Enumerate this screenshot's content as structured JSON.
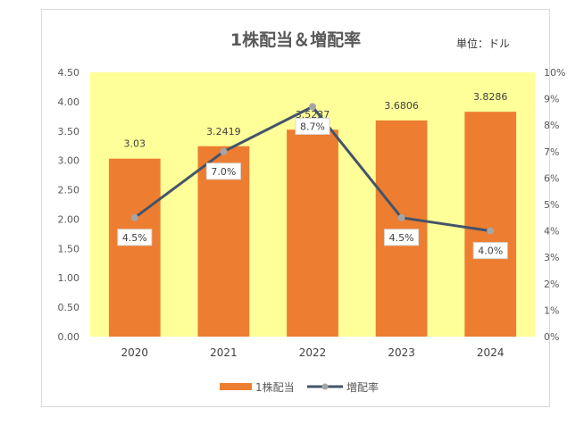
{
  "chart_data": {
    "type": "bar",
    "title": "1株配当＆増配率",
    "unit_note": "単位：ドル",
    "categories": [
      "2020",
      "2021",
      "2022",
      "2023",
      "2024"
    ],
    "series": [
      {
        "name": "1株配当",
        "type": "bar",
        "axis": "left",
        "values": [
          3.03,
          3.2419,
          3.5237,
          3.6806,
          3.8286
        ],
        "labels": [
          "3.03",
          "3.2419",
          "3.5237",
          "3.6806",
          "3.8286"
        ],
        "color": "#ed7d31"
      },
      {
        "name": "増配率",
        "type": "line",
        "axis": "right",
        "values": [
          4.5,
          7.0,
          8.7,
          4.5,
          4.0
        ],
        "labels": [
          "4.5%",
          "7.0%",
          "8.7%",
          "4.5%",
          "4.0%"
        ],
        "color": "#44546a",
        "marker_color": "#a5a5a5"
      }
    ],
    "y_left": {
      "lim": [
        0,
        4.5
      ],
      "ticks": [
        "0.00",
        "0.50",
        "1.00",
        "1.50",
        "2.00",
        "2.50",
        "3.00",
        "3.50",
        "4.00",
        "4.50"
      ]
    },
    "y_right": {
      "lim": [
        0,
        10
      ],
      "ticks": [
        "0%",
        "1%",
        "2%",
        "3%",
        "4%",
        "5%",
        "6%",
        "7%",
        "8%",
        "9%",
        "10%"
      ]
    },
    "plot_background": "#ffff99",
    "grid": false,
    "legend_position": "bottom"
  }
}
